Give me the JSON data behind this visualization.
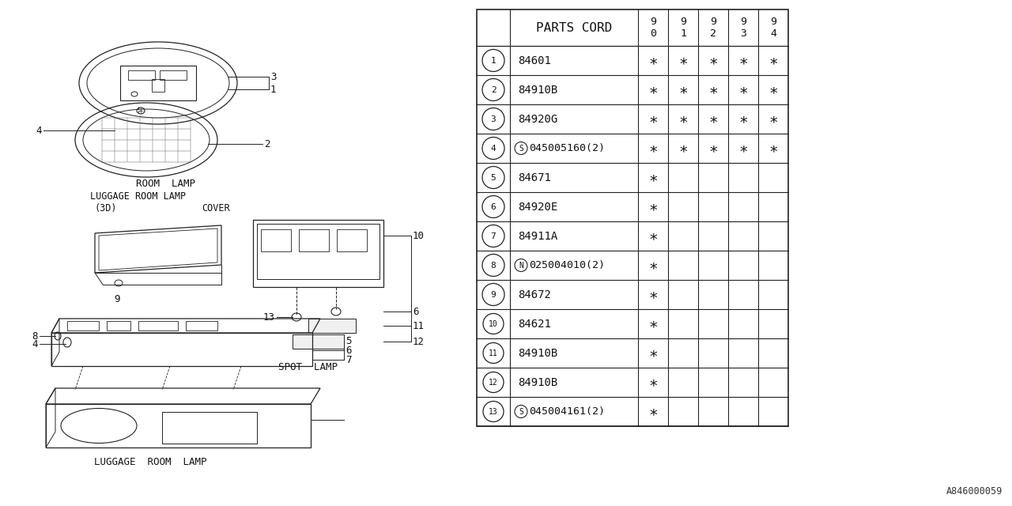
{
  "bg_color": "#ffffff",
  "table": {
    "header_label": "PARTS CORD",
    "year_cols": [
      "9\n0",
      "9\n1",
      "9\n2",
      "9\n3",
      "9\n4"
    ],
    "rows": [
      {
        "num": "1",
        "prefix": "",
        "code": "84601",
        "marks": [
          1,
          1,
          1,
          1,
          1
        ]
      },
      {
        "num": "2",
        "prefix": "",
        "code": "84910B",
        "marks": [
          1,
          1,
          1,
          1,
          1
        ]
      },
      {
        "num": "3",
        "prefix": "",
        "code": "84920G",
        "marks": [
          1,
          1,
          1,
          1,
          1
        ]
      },
      {
        "num": "4",
        "prefix": "S",
        "code": "045005160(2)",
        "marks": [
          1,
          1,
          1,
          1,
          1
        ]
      },
      {
        "num": "5",
        "prefix": "",
        "code": "84671",
        "marks": [
          1,
          0,
          0,
          0,
          0
        ]
      },
      {
        "num": "6",
        "prefix": "",
        "code": "84920E",
        "marks": [
          1,
          0,
          0,
          0,
          0
        ]
      },
      {
        "num": "7",
        "prefix": "",
        "code": "84911A",
        "marks": [
          1,
          0,
          0,
          0,
          0
        ]
      },
      {
        "num": "8",
        "prefix": "N",
        "code": "025004010(2)",
        "marks": [
          1,
          0,
          0,
          0,
          0
        ]
      },
      {
        "num": "9",
        "prefix": "",
        "code": "84672",
        "marks": [
          1,
          0,
          0,
          0,
          0
        ]
      },
      {
        "num": "10",
        "prefix": "",
        "code": "84621",
        "marks": [
          1,
          0,
          0,
          0,
          0
        ]
      },
      {
        "num": "11",
        "prefix": "",
        "code": "84910B",
        "marks": [
          1,
          0,
          0,
          0,
          0
        ]
      },
      {
        "num": "12",
        "prefix": "",
        "code": "84910B",
        "marks": [
          1,
          0,
          0,
          0,
          0
        ]
      },
      {
        "num": "13",
        "prefix": "S",
        "code": "045004161(2)",
        "marks": [
          1,
          0,
          0,
          0,
          0
        ]
      }
    ]
  },
  "ref_number": "A846000059"
}
